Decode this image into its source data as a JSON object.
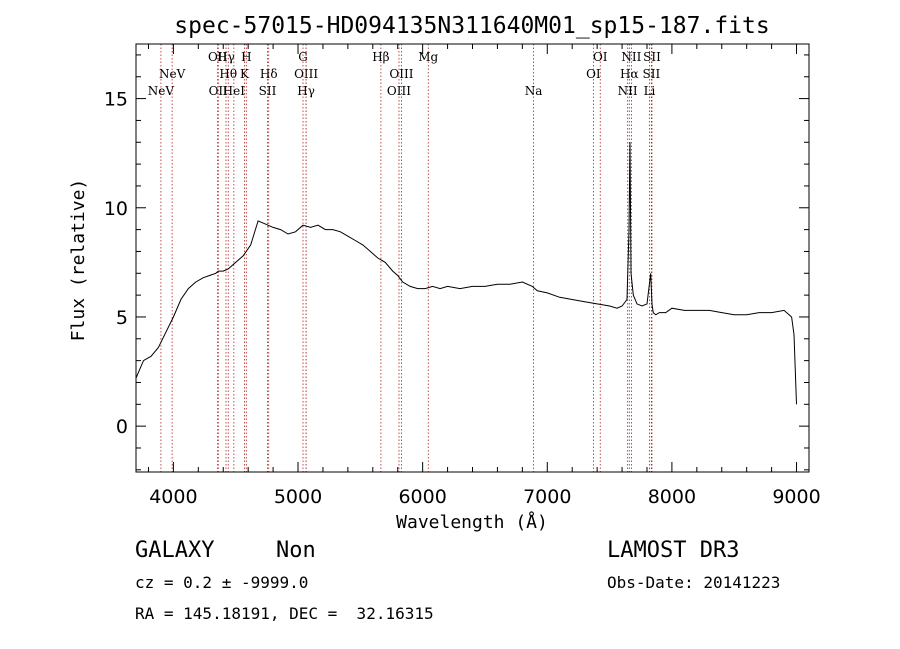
{
  "chart_data": {
    "type": "line",
    "title": "spec-57015-HD094135N311640M01_sp15-187.fits",
    "xlabel": "Wavelength (Å)",
    "ylabel": "Flux (relative)",
    "xlim": [
      3700,
      9100
    ],
    "ylim": [
      -2.1,
      17.5
    ],
    "xticks": [
      4000,
      5000,
      6000,
      7000,
      8000,
      9000
    ],
    "xtick_labels": [
      "4000",
      "5000",
      "6000",
      "7000",
      "8000",
      "9000"
    ],
    "yticks": [
      0,
      5,
      10,
      15
    ],
    "ytick_labels": [
      "0",
      "5",
      "10",
      "15"
    ],
    "grid": false,
    "legend": "none",
    "series": [
      {
        "x": [
          3700,
          3760,
          3820,
          3880,
          3940,
          4000,
          4060,
          4120,
          4180,
          4240,
          4290,
          4340,
          4360,
          4400,
          4440,
          4500,
          4560,
          4620,
          4680,
          4720,
          4760,
          4800,
          4860,
          4920,
          4980,
          5040,
          5100,
          5160,
          5220,
          5280,
          5340,
          5400,
          5460,
          5520,
          5580,
          5640,
          5700,
          5760,
          5800,
          5840,
          5900,
          5960,
          6020,
          6080,
          6140,
          6200,
          6300,
          6400,
          6500,
          6600,
          6700,
          6800,
          6880,
          6920,
          7000,
          7100,
          7200,
          7300,
          7400,
          7500,
          7560,
          7600,
          7640,
          7656,
          7664,
          7672,
          7690,
          7720,
          7760,
          7800,
          7830,
          7840,
          7850,
          7870,
          7900,
          7950,
          8000,
          8100,
          8200,
          8300,
          8400,
          8500,
          8600,
          8700,
          8800,
          8900,
          8960,
          8980,
          9000
        ],
        "y": [
          2.2,
          3.0,
          3.2,
          3.6,
          4.3,
          5.0,
          5.8,
          6.3,
          6.6,
          6.8,
          6.9,
          7.0,
          7.1,
          7.1,
          7.2,
          7.5,
          7.8,
          8.3,
          9.4,
          9.3,
          9.2,
          9.1,
          9.0,
          8.8,
          8.9,
          9.2,
          9.1,
          9.2,
          9.0,
          9.0,
          8.9,
          8.7,
          8.5,
          8.3,
          8.0,
          7.7,
          7.5,
          7.1,
          6.9,
          6.6,
          6.4,
          6.3,
          6.3,
          6.4,
          6.3,
          6.4,
          6.3,
          6.4,
          6.4,
          6.5,
          6.5,
          6.6,
          6.4,
          6.2,
          6.1,
          5.9,
          5.8,
          5.7,
          5.6,
          5.5,
          5.4,
          5.5,
          5.8,
          9.0,
          13.0,
          7.0,
          6.0,
          5.6,
          5.5,
          5.6,
          7.0,
          5.6,
          5.2,
          5.1,
          5.2,
          5.2,
          5.4,
          5.3,
          5.3,
          5.3,
          5.2,
          5.1,
          5.1,
          5.2,
          5.2,
          5.3,
          5.0,
          4.2,
          1.0
        ]
      }
    ],
    "lines": [
      {
        "name": "NeV",
        "wl": 3900,
        "row": 2
      },
      {
        "name": "NeV",
        "wl": 3990,
        "row": 1
      },
      {
        "name": "OII",
        "wl": 4355,
        "row": 0
      },
      {
        "name": "OII",
        "wl": 4360,
        "row": 2
      },
      {
        "name": "Hγ",
        "wl": 4422,
        "row": 0
      },
      {
        "name": "Hθ",
        "wl": 4440,
        "row": 1
      },
      {
        "name": "HeI",
        "wl": 4485,
        "row": 2
      },
      {
        "name": "H",
        "wl": 4585,
        "row": 0
      },
      {
        "name": "K",
        "wl": 4570,
        "row": 1
      },
      {
        "name": "Hδ",
        "wl": 4765,
        "row": 1
      },
      {
        "name": "SII",
        "wl": 4755,
        "row": 2
      },
      {
        "name": "G",
        "wl": 5040,
        "row": 0
      },
      {
        "name": "OIII",
        "wl": 5065,
        "row": 1
      },
      {
        "name": "Hγ",
        "wl": 5065,
        "row": 2
      },
      {
        "name": "Hβ",
        "wl": 5665,
        "row": 0
      },
      {
        "name": "OIII",
        "wl": 5830,
        "row": 1
      },
      {
        "name": "OIII",
        "wl": 5810,
        "row": 2
      },
      {
        "name": "Mg",
        "wl": 6045,
        "row": 0
      },
      {
        "name": "Na",
        "wl": 6890,
        "row": 2
      },
      {
        "name": "OI",
        "wl": 7425,
        "row": 0
      },
      {
        "name": "OI",
        "wl": 7370,
        "row": 1
      },
      {
        "name": "NII",
        "wl": 7675,
        "row": 0
      },
      {
        "name": "Hα",
        "wl": 7658,
        "row": 1
      },
      {
        "name": "NII",
        "wl": 7645,
        "row": 2
      },
      {
        "name": "SII",
        "wl": 7840,
        "row": 0
      },
      {
        "name": "SII",
        "wl": 7835,
        "row": 1
      },
      {
        "name": "Li",
        "wl": 7820,
        "row": 2
      }
    ]
  },
  "footer": {
    "object_class": "GALAXY",
    "subclass": "Non",
    "survey": "LAMOST DR3",
    "redshift": "cz = 0.2 ± -9999.0",
    "obs_date": "Obs-Date: 20141223",
    "coords": "RA = 145.18191, DEC =  32.16315"
  },
  "colors": {
    "spectrum": "#000000",
    "line_markers": "#b22222",
    "axes": "#000000"
  }
}
